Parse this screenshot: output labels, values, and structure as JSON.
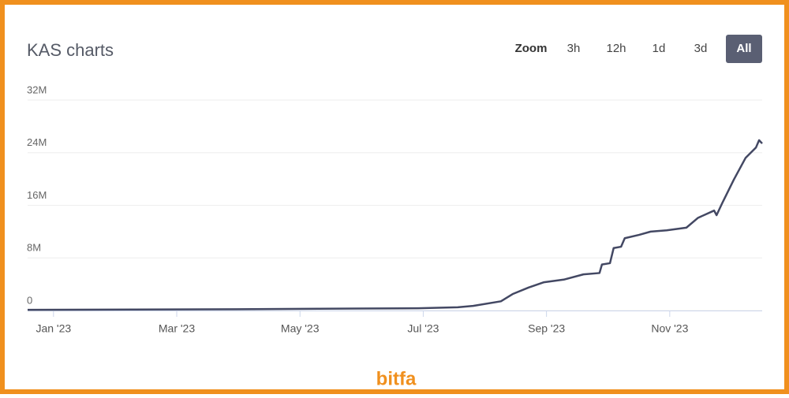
{
  "chart_data": {
    "type": "line",
    "title": "KAS charts",
    "x": [
      0.58,
      3.97,
      5.89,
      6.92,
      7.56,
      7.81,
      8.26,
      8.45,
      8.71,
      8.96,
      9.28,
      9.6,
      9.86,
      9.9,
      10.03,
      10.09,
      10.21,
      10.27,
      10.5,
      10.69,
      10.95,
      11.27,
      11.46,
      11.72,
      11.76,
      11.85,
      12.04,
      12.23,
      12.4,
      12.45,
      12.5
    ],
    "series": [
      {
        "name": "KAS",
        "color": "#434863",
        "values": [
          100000,
          200000,
          300000,
          350000,
          500000,
          700000,
          1400000,
          2500000,
          3500000,
          4300000,
          4700000,
          5500000,
          5700000,
          7000000,
          7200000,
          9500000,
          9700000,
          11000000,
          11500000,
          12000000,
          12200000,
          12600000,
          14100000,
          15200000,
          14500000,
          16300000,
          19900000,
          23200000,
          24800000,
          25900000,
          25400000
        ]
      }
    ],
    "xlim": [
      0.58,
      12.5
    ],
    "xticks": [
      {
        "value": 1,
        "label": "Jan '23"
      },
      {
        "value": 3,
        "label": "Mar '23"
      },
      {
        "value": 5,
        "label": "May '23"
      },
      {
        "value": 7,
        "label": "Jul '23"
      },
      {
        "value": 9,
        "label": "Sep '23"
      },
      {
        "value": 11,
        "label": "Nov '23"
      }
    ],
    "ylim": [
      0,
      32000000
    ],
    "yticks": [
      0,
      {
        "value": 8000000,
        "label": "8M"
      },
      {
        "value": 16000000,
        "label": "16M"
      },
      {
        "value": 24000000,
        "label": "24M"
      },
      {
        "value": 32000000,
        "label": "32M"
      }
    ],
    "grid": true
  },
  "toolbar": {
    "label": "Zoom",
    "options": [
      "3h",
      "12h",
      "1d",
      "3d",
      "All"
    ]
  },
  "watermark": "bitfa"
}
